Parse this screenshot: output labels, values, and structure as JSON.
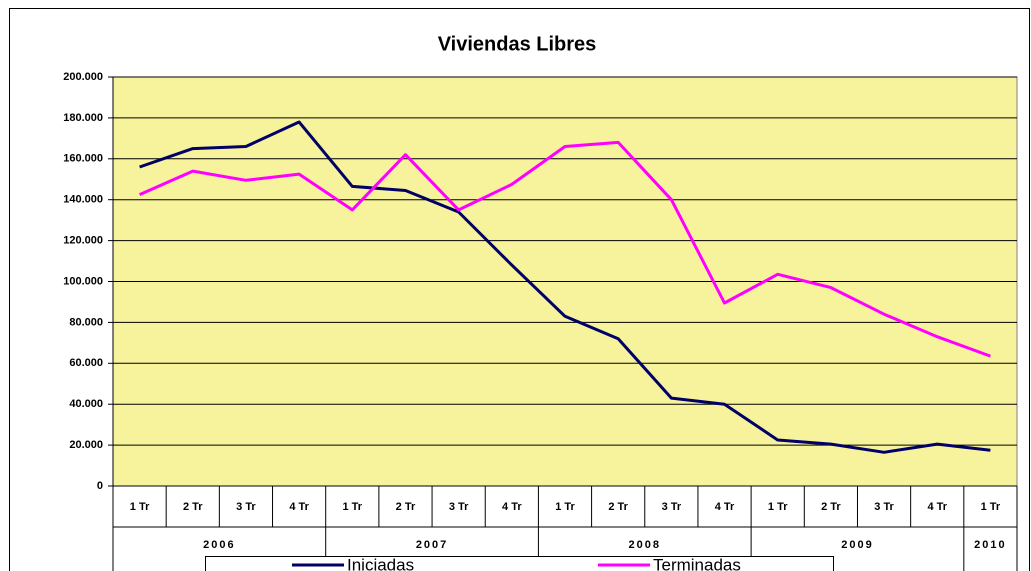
{
  "chart_data": {
    "type": "line",
    "title": "Viviendas Libres",
    "groups": [
      {
        "name": "2006",
        "categories": [
          "1 Tr",
          "2 Tr",
          "3 Tr",
          "4 Tr"
        ]
      },
      {
        "name": "2007",
        "categories": [
          "1 Tr",
          "2 Tr",
          "3 Tr",
          "4 Tr"
        ]
      },
      {
        "name": "2008",
        "categories": [
          "1 Tr",
          "2 Tr",
          "3 Tr",
          "4 Tr"
        ]
      },
      {
        "name": "2009",
        "categories": [
          "1 Tr",
          "2 Tr",
          "3 Tr",
          "4 Tr"
        ]
      },
      {
        "name": "2010",
        "categories": [
          "1 Tr"
        ]
      }
    ],
    "series": [
      {
        "name": "Iniciadas",
        "color": "#000066",
        "values": [
          156000,
          165000,
          166000,
          178000,
          146500,
          144500,
          134000,
          108000,
          83000,
          72000,
          43000,
          40000,
          22500,
          20500,
          16500,
          20500,
          17500
        ]
      },
      {
        "name": "Terminadas",
        "color": "#ff00ff",
        "values": [
          142500,
          154000,
          149500,
          152500,
          135000,
          162000,
          135000,
          147500,
          166000,
          168000,
          140000,
          89500,
          103500,
          97000,
          84000,
          73000,
          63500
        ]
      }
    ],
    "ylim": [
      0,
      200000
    ],
    "yticks": [
      0,
      {
        "value": 20000,
        "label": "20.000"
      },
      {
        "value": 40000,
        "label": "40.000"
      },
      {
        "value": 60000,
        "label": "60.000"
      },
      {
        "value": 80000,
        "label": "80.000"
      },
      {
        "value": 100000,
        "label": "100.000"
      },
      {
        "value": 120000,
        "label": "120.000"
      },
      {
        "value": 140000,
        "label": "140.000"
      },
      {
        "value": 160000,
        "label": "160.000"
      },
      {
        "value": 180000,
        "label": "180.000"
      },
      {
        "value": 200000,
        "label": "200.000"
      }
    ],
    "grid": true,
    "legend": "bottom",
    "plot_background": "#f7f39c"
  }
}
